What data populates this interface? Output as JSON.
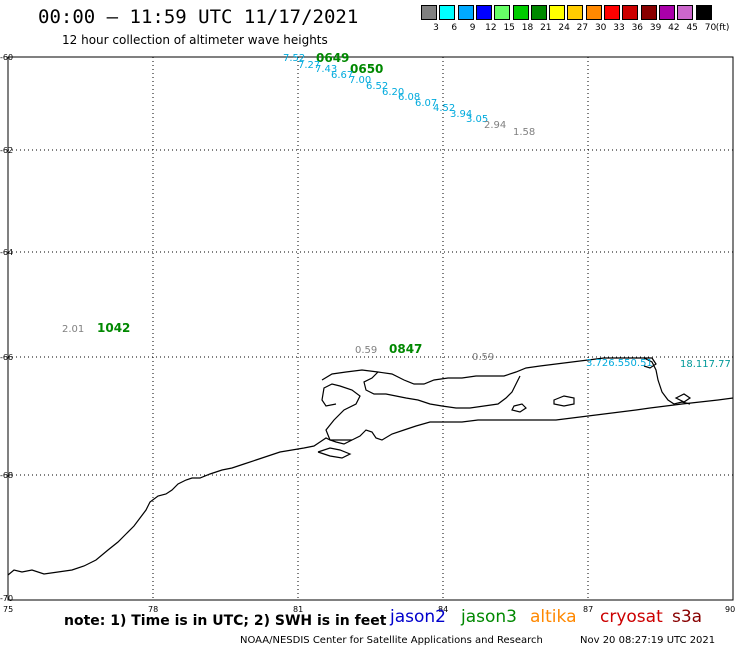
{
  "header": {
    "title": "00:00 – 11:59 UTC 11/17/2021",
    "subtitle": "12 hour collection of altimeter wave heights"
  },
  "legend_scale": {
    "unit": "(ft)",
    "items": [
      {
        "label": "3",
        "color": "#808080"
      },
      {
        "label": "6",
        "color": "#00ffff"
      },
      {
        "label": "9",
        "color": "#00aaff"
      },
      {
        "label": "12",
        "color": "#0000ff"
      },
      {
        "label": "15",
        "color": "#66ff66"
      },
      {
        "label": "18",
        "color": "#00cc00"
      },
      {
        "label": "21",
        "color": "#008800"
      },
      {
        "label": "24",
        "color": "#ffff00"
      },
      {
        "label": "27",
        "color": "#ffcc00"
      },
      {
        "label": "30",
        "color": "#ff8800"
      },
      {
        "label": "33",
        "color": "#ff0000"
      },
      {
        "label": "36",
        "color": "#cc0000"
      },
      {
        "label": "39",
        "color": "#880000"
      },
      {
        "label": "42",
        "color": "#aa00aa"
      },
      {
        "label": "45",
        "color": "#cc66cc"
      },
      {
        "label": "70",
        "color": "#000000"
      }
    ]
  },
  "axes": {
    "x_ticks": [
      "75",
      "78",
      "81",
      "84",
      "87",
      "90"
    ],
    "y_ticks": [
      "-60",
      "-62",
      "-64",
      "-66",
      "-68",
      "-70"
    ]
  },
  "colors": {
    "jason2": "#0000cc",
    "jason3": "#008800",
    "altika": "#ff8800",
    "cryosat": "#cc0000",
    "s3a": "#880000",
    "swh_cyan": "#00aadd",
    "swh_gray": "#808080",
    "swh_teal": "#009999"
  },
  "observations": {
    "times": [
      {
        "text": "0649",
        "color": "#008800"
      },
      {
        "text": "0650",
        "color": "#008800"
      },
      {
        "text": "1042",
        "color": "#008800"
      },
      {
        "text": "0847",
        "color": "#008800"
      }
    ],
    "swh": [
      {
        "text": "7.52",
        "color": "#00aadd"
      },
      {
        "text": "7.27",
        "color": "#00aadd"
      },
      {
        "text": "7.43",
        "color": "#00aadd"
      },
      {
        "text": "6.67",
        "color": "#00aadd"
      },
      {
        "text": "7.00",
        "color": "#00aadd"
      },
      {
        "text": "6.52",
        "color": "#00aadd"
      },
      {
        "text": "6.20",
        "color": "#00aadd"
      },
      {
        "text": "6.08",
        "color": "#00aadd"
      },
      {
        "text": "6.07",
        "color": "#00aadd"
      },
      {
        "text": "4.52",
        "color": "#00aadd"
      },
      {
        "text": "3.94",
        "color": "#00aadd"
      },
      {
        "text": "3.05",
        "color": "#00aadd"
      },
      {
        "text": "2.94",
        "color": "#808080"
      },
      {
        "text": "1.58",
        "color": "#808080"
      },
      {
        "text": "2.01",
        "color": "#808080"
      },
      {
        "text": "0.59",
        "color": "#808080"
      },
      {
        "text": "0.59",
        "color": "#808080"
      },
      {
        "text": "3.726.550.51",
        "color": "#00aadd"
      },
      {
        "text": "18.117.77",
        "color": "#009999"
      }
    ]
  },
  "footer": {
    "note": "note: 1) Time is in UTC; 2) SWH is in feet",
    "satellites": [
      {
        "name": "jason2",
        "color": "#0000cc"
      },
      {
        "name": "jason3",
        "color": "#008800"
      },
      {
        "name": "altika",
        "color": "#ff8800"
      },
      {
        "name": "cryosat",
        "color": "#cc0000"
      },
      {
        "name": "s3a",
        "color": "#880000"
      }
    ],
    "credit": "NOAA/NESDIS Center for Satellite Applications and Research",
    "timestamp": "Nov 20 08:27:19 UTC 2021"
  }
}
